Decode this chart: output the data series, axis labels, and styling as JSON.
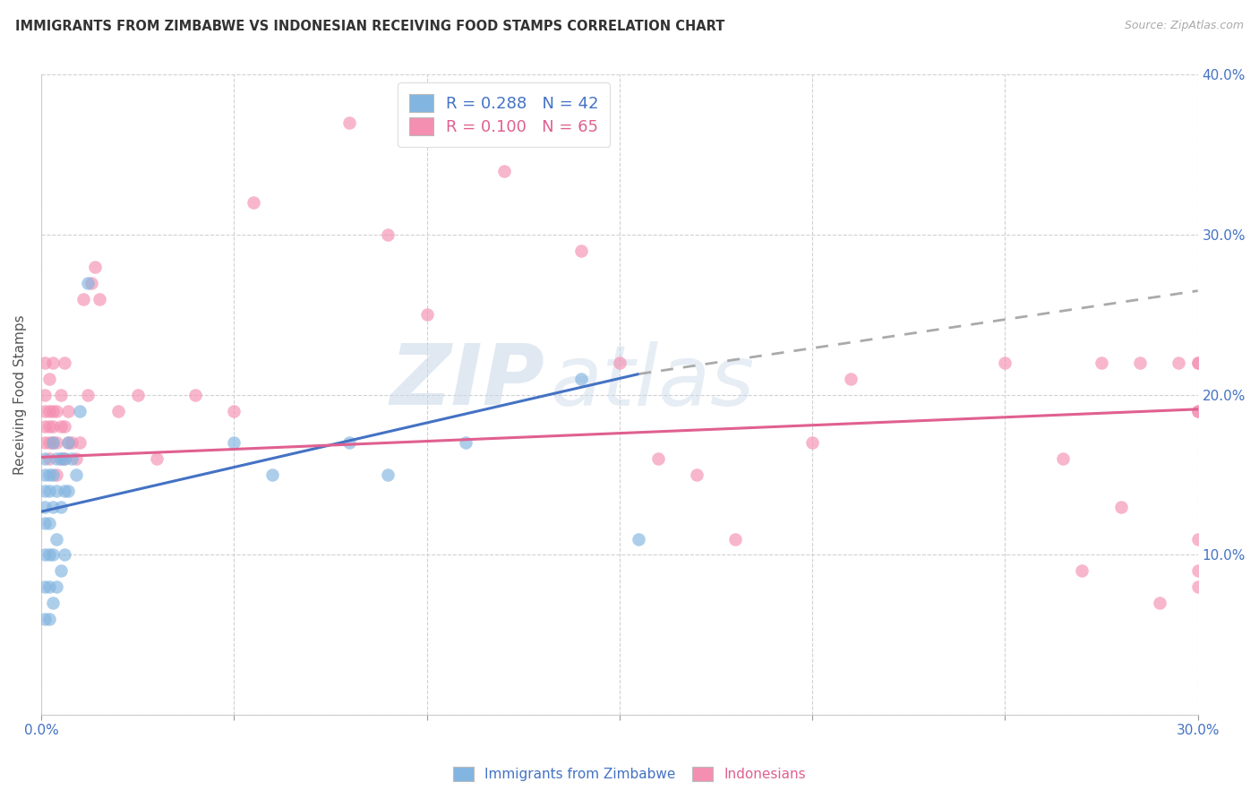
{
  "title": "IMMIGRANTS FROM ZIMBABWE VS INDONESIAN RECEIVING FOOD STAMPS CORRELATION CHART",
  "source": "Source: ZipAtlas.com",
  "ylabel": "Receiving Food Stamps",
  "xlim": [
    0.0,
    0.3
  ],
  "ylim": [
    0.0,
    0.4
  ],
  "xticks": [
    0.0,
    0.05,
    0.1,
    0.15,
    0.2,
    0.25,
    0.3
  ],
  "yticks": [
    0.0,
    0.1,
    0.2,
    0.3,
    0.4
  ],
  "blue_color": "#82b5e0",
  "pink_color": "#f48fb1",
  "blue_line_color": "#4472c4",
  "pink_line_color": "#e06090",
  "watermark_zip": "ZIP",
  "watermark_atlas": "atlas",
  "legend_label_blue": "Immigrants from Zimbabwe",
  "legend_label_pink": "Indonesians",
  "legend_R_blue": "R = 0.288",
  "legend_N_blue": "N = 42",
  "legend_R_pink": "R = 0.100",
  "legend_N_pink": "N = 65",
  "blue_line_x_start": 0.0,
  "blue_line_x_solid_end": 0.155,
  "blue_line_x_end": 0.3,
  "blue_line_y_start": 0.127,
  "blue_line_y_solid_end": 0.213,
  "blue_line_y_end": 0.265,
  "pink_line_x_start": 0.0,
  "pink_line_x_end": 0.3,
  "pink_line_y_start": 0.161,
  "pink_line_y_end": 0.191,
  "blue_x": [
    0.001,
    0.001,
    0.001,
    0.001,
    0.001,
    0.001,
    0.001,
    0.001,
    0.002,
    0.002,
    0.002,
    0.002,
    0.002,
    0.002,
    0.003,
    0.003,
    0.003,
    0.003,
    0.003,
    0.004,
    0.004,
    0.004,
    0.004,
    0.005,
    0.005,
    0.005,
    0.006,
    0.006,
    0.006,
    0.007,
    0.007,
    0.008,
    0.009,
    0.01,
    0.012,
    0.05,
    0.06,
    0.08,
    0.09,
    0.11,
    0.14,
    0.155
  ],
  "blue_y": [
    0.15,
    0.16,
    0.14,
    0.13,
    0.12,
    0.1,
    0.08,
    0.06,
    0.15,
    0.14,
    0.12,
    0.1,
    0.08,
    0.06,
    0.17,
    0.15,
    0.13,
    0.1,
    0.07,
    0.16,
    0.14,
    0.11,
    0.08,
    0.16,
    0.13,
    0.09,
    0.16,
    0.14,
    0.1,
    0.17,
    0.14,
    0.16,
    0.15,
    0.19,
    0.27,
    0.17,
    0.15,
    0.17,
    0.15,
    0.17,
    0.21,
    0.11
  ],
  "pink_x": [
    0.001,
    0.001,
    0.001,
    0.001,
    0.001,
    0.002,
    0.002,
    0.002,
    0.002,
    0.002,
    0.003,
    0.003,
    0.003,
    0.003,
    0.004,
    0.004,
    0.004,
    0.005,
    0.005,
    0.005,
    0.006,
    0.006,
    0.006,
    0.007,
    0.007,
    0.008,
    0.009,
    0.01,
    0.011,
    0.012,
    0.013,
    0.014,
    0.015,
    0.02,
    0.025,
    0.03,
    0.04,
    0.05,
    0.055,
    0.08,
    0.09,
    0.1,
    0.12,
    0.14,
    0.15,
    0.16,
    0.17,
    0.18,
    0.2,
    0.21,
    0.25,
    0.265,
    0.27,
    0.275,
    0.28,
    0.285,
    0.29,
    0.295,
    0.3,
    0.3,
    0.3,
    0.3,
    0.3,
    0.3,
    0.3
  ],
  "pink_y": [
    0.17,
    0.18,
    0.19,
    0.2,
    0.22,
    0.16,
    0.17,
    0.18,
    0.19,
    0.21,
    0.17,
    0.18,
    0.19,
    0.22,
    0.15,
    0.17,
    0.19,
    0.16,
    0.18,
    0.2,
    0.16,
    0.18,
    0.22,
    0.17,
    0.19,
    0.17,
    0.16,
    0.17,
    0.26,
    0.2,
    0.27,
    0.28,
    0.26,
    0.19,
    0.2,
    0.16,
    0.2,
    0.19,
    0.32,
    0.37,
    0.3,
    0.25,
    0.34,
    0.29,
    0.22,
    0.16,
    0.15,
    0.11,
    0.17,
    0.21,
    0.22,
    0.16,
    0.09,
    0.22,
    0.13,
    0.22,
    0.07,
    0.22,
    0.19,
    0.11,
    0.22,
    0.08,
    0.09,
    0.22,
    0.19
  ]
}
